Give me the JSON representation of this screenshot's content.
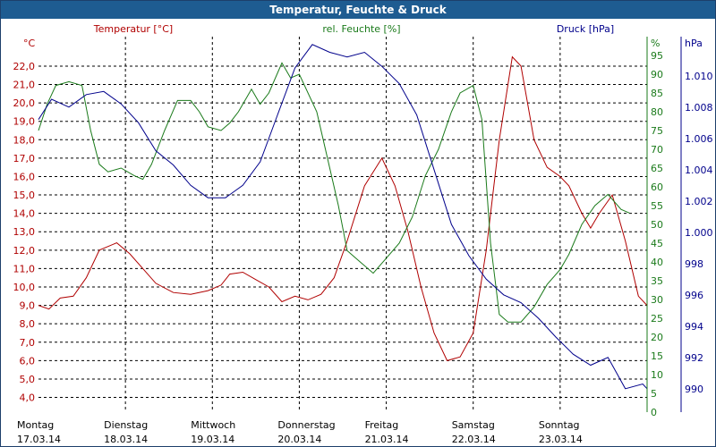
{
  "window": {
    "title": "Temperatur, Feuchte & Druck"
  },
  "colors": {
    "temperature": "#b00000",
    "humidity": "#1a7a1a",
    "pressure": "#00008b",
    "grid": "#000000"
  },
  "chart_data": {
    "type": "line",
    "title": "Temperatur, Feuchte & Druck",
    "grid": true,
    "days": [
      {
        "name": "Montag",
        "date": "17.03.14"
      },
      {
        "name": "Dienstag",
        "date": "18.03.14"
      },
      {
        "name": "Mittwoch",
        "date": "19.03.14"
      },
      {
        "name": "Donnerstag",
        "date": "20.03.14"
      },
      {
        "name": "Freitag",
        "date": "21.03.14"
      },
      {
        "name": "Samstag",
        "date": "22.03.14"
      },
      {
        "name": "Sonntag",
        "date": "23.03.14"
      }
    ],
    "x_range": [
      0,
      7
    ],
    "axes": {
      "temperature": {
        "label": "Temperatur [°C]",
        "unit_label": "°C",
        "ylim": [
          3.2,
          23.6
        ],
        "ticks": [
          "4,0",
          "5,0",
          "6,0",
          "7,0",
          "8,0",
          "9,0",
          "10,0",
          "11,0",
          "12,0",
          "13,0",
          "14,0",
          "15,0",
          "16,0",
          "17,0",
          "18,0",
          "19,0",
          "20,0",
          "21,0",
          "22,0"
        ],
        "tick_values": [
          4,
          5,
          6,
          7,
          8,
          9,
          10,
          11,
          12,
          13,
          14,
          15,
          16,
          17,
          18,
          19,
          20,
          21,
          22
        ]
      },
      "humidity": {
        "label": "rel. Feuchte [%]",
        "unit_label": "%",
        "ylim": [
          0,
          100
        ],
        "ticks": [
          "0",
          "5",
          "10",
          "15",
          "20",
          "25",
          "30",
          "35",
          "40",
          "45",
          "50",
          "55",
          "60",
          "65",
          "70",
          "75",
          "80",
          "85",
          "90",
          "95"
        ],
        "tick_values": [
          0,
          5,
          10,
          15,
          20,
          25,
          30,
          35,
          40,
          45,
          50,
          55,
          60,
          65,
          70,
          75,
          80,
          85,
          90,
          95
        ]
      },
      "pressure": {
        "label": "Druck [hPa]",
        "unit_label": "hPa",
        "ylim": [
          988.5,
          1012.5
        ],
        "ticks": [
          "990",
          "992",
          "994",
          "996",
          "998",
          "1.000",
          "1.002",
          "1.004",
          "1.006",
          "1.008",
          "1.010"
        ],
        "tick_values": [
          990,
          992,
          994,
          996,
          998,
          1000,
          1002,
          1004,
          1006,
          1008,
          1010
        ]
      }
    },
    "series": [
      {
        "name": "Temperatur [°C]",
        "axis": "temperature",
        "points": [
          [
            0.0,
            9.0
          ],
          [
            0.12,
            8.8
          ],
          [
            0.25,
            9.4
          ],
          [
            0.4,
            9.5
          ],
          [
            0.55,
            10.5
          ],
          [
            0.7,
            12.0
          ],
          [
            0.9,
            12.4
          ],
          [
            1.05,
            11.8
          ],
          [
            1.2,
            11.0
          ],
          [
            1.35,
            10.2
          ],
          [
            1.55,
            9.7
          ],
          [
            1.75,
            9.6
          ],
          [
            1.95,
            9.8
          ],
          [
            2.1,
            10.1
          ],
          [
            2.2,
            10.7
          ],
          [
            2.35,
            10.8
          ],
          [
            2.5,
            10.4
          ],
          [
            2.65,
            10.0
          ],
          [
            2.8,
            9.2
          ],
          [
            2.95,
            9.5
          ],
          [
            3.1,
            9.3
          ],
          [
            3.25,
            9.6
          ],
          [
            3.4,
            10.5
          ],
          [
            3.55,
            12.5
          ],
          [
            3.75,
            15.5
          ],
          [
            3.95,
            17.0
          ],
          [
            4.1,
            15.5
          ],
          [
            4.25,
            13.0
          ],
          [
            4.4,
            10.0
          ],
          [
            4.55,
            7.5
          ],
          [
            4.7,
            6.0
          ],
          [
            4.85,
            6.2
          ],
          [
            5.0,
            7.5
          ],
          [
            5.15,
            12.0
          ],
          [
            5.3,
            18.0
          ],
          [
            5.45,
            22.5
          ],
          [
            5.55,
            22.0
          ],
          [
            5.7,
            18.0
          ],
          [
            5.85,
            16.5
          ],
          [
            6.0,
            16.0
          ],
          [
            6.1,
            15.5
          ],
          [
            6.25,
            14.0
          ],
          [
            6.35,
            13.2
          ],
          [
            6.45,
            14.0
          ],
          [
            6.6,
            15.0
          ],
          [
            6.75,
            12.5
          ],
          [
            6.9,
            9.5
          ],
          [
            7.0,
            9.0
          ]
        ]
      },
      {
        "name": "rel. Feuchte [%]",
        "axis": "humidity",
        "points": [
          [
            0.0,
            75
          ],
          [
            0.1,
            82
          ],
          [
            0.2,
            87
          ],
          [
            0.35,
            88
          ],
          [
            0.5,
            87
          ],
          [
            0.6,
            75
          ],
          [
            0.7,
            66
          ],
          [
            0.8,
            64
          ],
          [
            0.95,
            65
          ],
          [
            1.1,
            63
          ],
          [
            1.2,
            62
          ],
          [
            1.3,
            66
          ],
          [
            1.45,
            75
          ],
          [
            1.6,
            83
          ],
          [
            1.75,
            83
          ],
          [
            1.85,
            80
          ],
          [
            1.95,
            76
          ],
          [
            2.1,
            75
          ],
          [
            2.2,
            77
          ],
          [
            2.3,
            80
          ],
          [
            2.45,
            86
          ],
          [
            2.55,
            82
          ],
          [
            2.65,
            85
          ],
          [
            2.8,
            93
          ],
          [
            2.9,
            89
          ],
          [
            3.0,
            90
          ],
          [
            3.2,
            80
          ],
          [
            3.3,
            70
          ],
          [
            3.45,
            55
          ],
          [
            3.55,
            43
          ],
          [
            3.7,
            40
          ],
          [
            3.85,
            37
          ],
          [
            4.0,
            41
          ],
          [
            4.15,
            45
          ],
          [
            4.3,
            52
          ],
          [
            4.45,
            63
          ],
          [
            4.6,
            70
          ],
          [
            4.75,
            80
          ],
          [
            4.85,
            85
          ],
          [
            5.0,
            87
          ],
          [
            5.1,
            78
          ],
          [
            5.2,
            45
          ],
          [
            5.3,
            26
          ],
          [
            5.4,
            24
          ],
          [
            5.55,
            24
          ],
          [
            5.7,
            28
          ],
          [
            5.85,
            34
          ],
          [
            6.0,
            38
          ],
          [
            6.1,
            42
          ],
          [
            6.25,
            50
          ],
          [
            6.4,
            55
          ],
          [
            6.55,
            58
          ],
          [
            6.7,
            54
          ],
          [
            6.8,
            53
          ]
        ]
      },
      {
        "name": "Druck [hPa]",
        "axis": "pressure",
        "points": [
          [
            0.0,
            1007.2
          ],
          [
            0.15,
            1008.5
          ],
          [
            0.35,
            1008.0
          ],
          [
            0.55,
            1008.8
          ],
          [
            0.75,
            1009.0
          ],
          [
            0.95,
            1008.2
          ],
          [
            1.15,
            1007.0
          ],
          [
            1.35,
            1005.2
          ],
          [
            1.55,
            1004.3
          ],
          [
            1.75,
            1003.0
          ],
          [
            1.95,
            1002.2
          ],
          [
            2.15,
            1002.2
          ],
          [
            2.35,
            1003.0
          ],
          [
            2.55,
            1004.5
          ],
          [
            2.75,
            1007.5
          ],
          [
            2.95,
            1010.5
          ],
          [
            3.15,
            1012.0
          ],
          [
            3.35,
            1011.5
          ],
          [
            3.55,
            1011.2
          ],
          [
            3.75,
            1011.5
          ],
          [
            3.95,
            1010.6
          ],
          [
            4.15,
            1009.5
          ],
          [
            4.35,
            1007.5
          ],
          [
            4.55,
            1004.0
          ],
          [
            4.75,
            1000.5
          ],
          [
            4.95,
            998.5
          ],
          [
            5.15,
            997.0
          ],
          [
            5.35,
            996.0
          ],
          [
            5.55,
            995.5
          ],
          [
            5.75,
            994.5
          ],
          [
            5.95,
            993.3
          ],
          [
            6.15,
            992.2
          ],
          [
            6.35,
            991.5
          ],
          [
            6.55,
            992.0
          ],
          [
            6.75,
            990.0
          ],
          [
            6.95,
            990.3
          ],
          [
            7.0,
            990.0
          ]
        ]
      }
    ]
  }
}
